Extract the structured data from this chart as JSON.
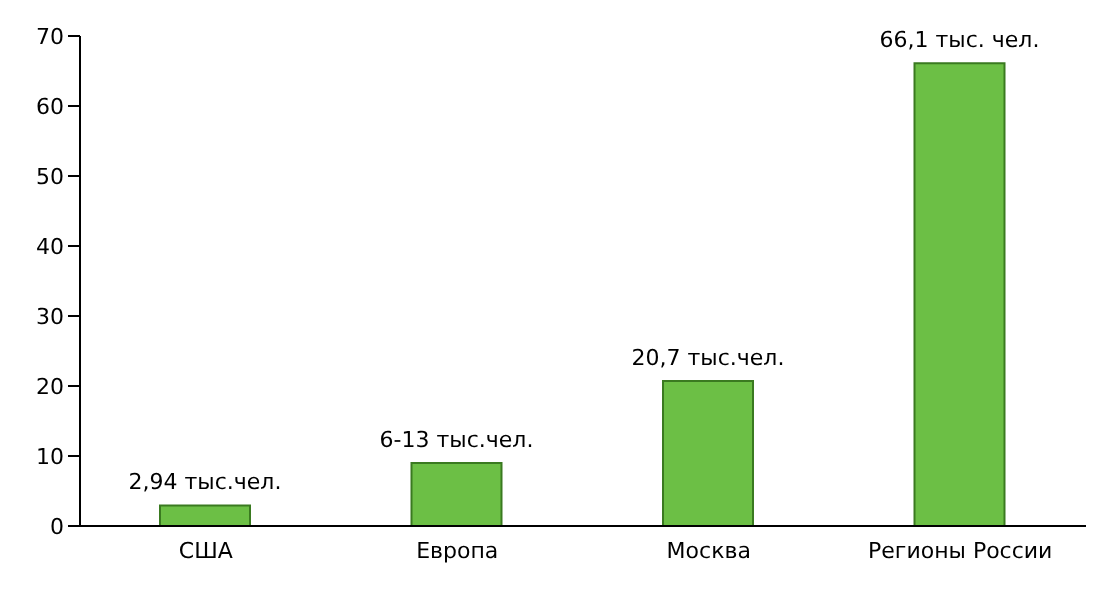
{
  "chart_data": {
    "type": "bar",
    "categories": [
      "США",
      "Европа",
      "Москва",
      "Регионы России"
    ],
    "values": [
      2.94,
      9,
      20.7,
      66.1
    ],
    "value_labels": [
      "2,94 тыс.чел.",
      "6-13 тыс.чел.",
      "20,7 тыс.чел.",
      "66,1 тыс. чел."
    ],
    "color": "#6cbf45",
    "ylim": [
      0,
      70
    ],
    "yticks": [
      0,
      10,
      20,
      30,
      40,
      50,
      60,
      70
    ],
    "grid": false,
    "legend": false
  }
}
